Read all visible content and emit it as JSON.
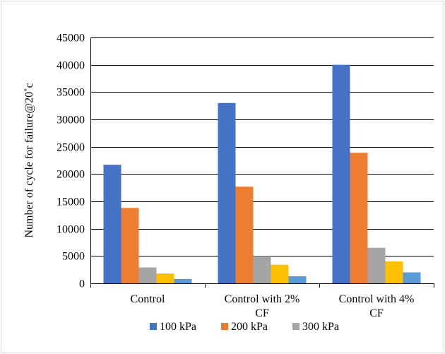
{
  "chart_data": {
    "type": "bar",
    "title": "",
    "xlabel": "",
    "ylabel": "Number of cycle for failure@20˚c",
    "ylim": [
      0,
      45000
    ],
    "yticks": [
      0,
      5000,
      10000,
      15000,
      20000,
      25000,
      30000,
      35000,
      40000,
      45000
    ],
    "grid": true,
    "legend_position": "bottom",
    "categories": [
      [
        "Control"
      ],
      [
        "Control with 2%",
        "CF"
      ],
      [
        "Control with 4%",
        "CF"
      ]
    ],
    "series": [
      {
        "name": "100 kPa",
        "color": "#4472C4",
        "values": [
          21700,
          33000,
          40000
        ]
      },
      {
        "name": "200 kPa",
        "color": "#ED7D31",
        "values": [
          13800,
          17700,
          23900
        ]
      },
      {
        "name": "300 kPa",
        "color": "#A5A5A5",
        "values": [
          2900,
          5000,
          6500
        ]
      },
      {
        "color": "#FFC000",
        "values": [
          1800,
          3400,
          4000
        ]
      },
      {
        "color": "#5B9BD5",
        "values": [
          800,
          1300,
          2000
        ]
      }
    ]
  }
}
